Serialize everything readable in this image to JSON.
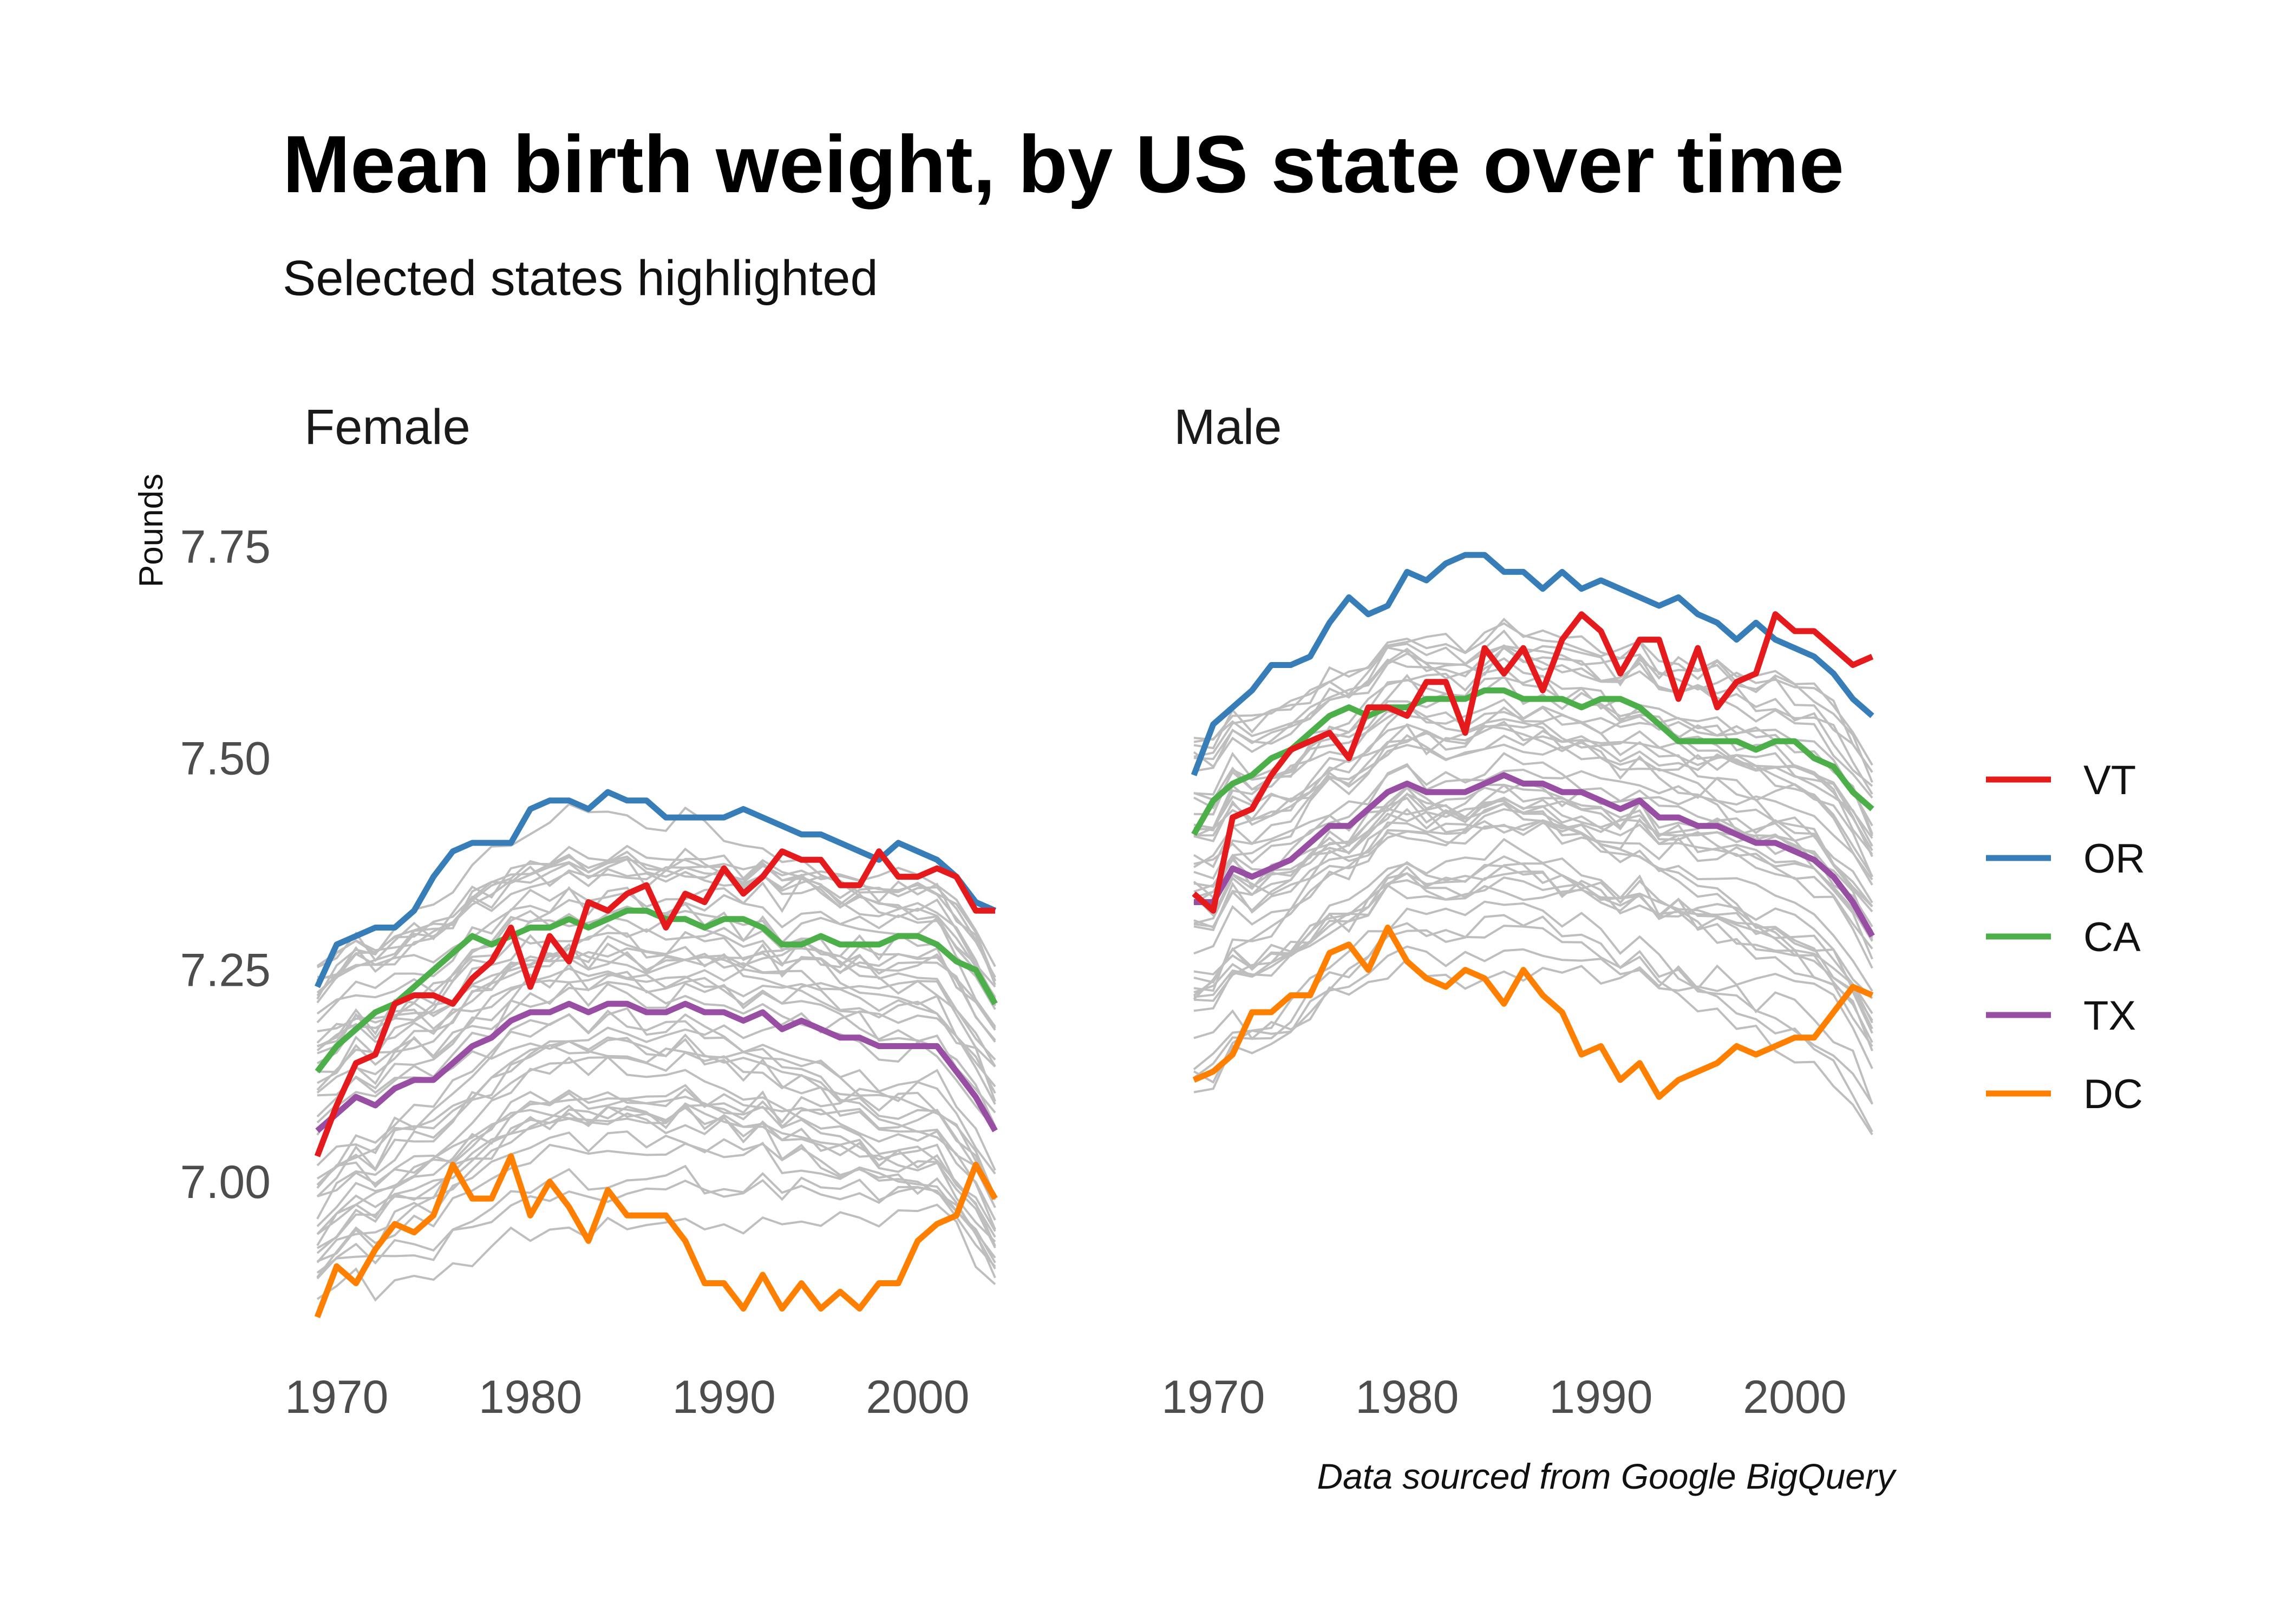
{
  "chart_data": {
    "type": "line",
    "title": "Mean birth weight, by US state over time",
    "subtitle": "Selected states highlighted",
    "caption": "Data sourced from Google BigQuery",
    "ylabel": "Pounds",
    "xlabel": "",
    "xlim": [
      1969,
      2004
    ],
    "ylim": [
      6.81,
      7.82
    ],
    "x_ticks": [
      1970,
      1980,
      1990,
      2000
    ],
    "y_ticks": [
      7.0,
      7.25,
      7.5,
      7.75
    ],
    "y_tick_labels": [
      "7.00",
      "7.25",
      "7.50",
      "7.75"
    ],
    "grid": false,
    "legend_position": "right",
    "background_color": "#bebebe",
    "facets": [
      "Female",
      "Male"
    ],
    "years": [
      1969,
      1970,
      1971,
      1972,
      1973,
      1974,
      1975,
      1976,
      1977,
      1978,
      1979,
      1980,
      1981,
      1982,
      1983,
      1984,
      1985,
      1986,
      1987,
      1988,
      1989,
      1990,
      1991,
      1992,
      1993,
      1994,
      1995,
      1996,
      1997,
      1998,
      1999,
      2000,
      2001,
      2002,
      2003,
      2004
    ],
    "series": [
      {
        "name": "VT",
        "color": "#e41a1c",
        "female": [
          7.03,
          7.09,
          7.14,
          7.15,
          7.21,
          7.22,
          7.22,
          7.21,
          7.24,
          7.26,
          7.3,
          7.23,
          7.29,
          7.26,
          7.33,
          7.32,
          7.34,
          7.35,
          7.3,
          7.34,
          7.33,
          7.37,
          7.34,
          7.36,
          7.39,
          7.38,
          7.38,
          7.35,
          7.35,
          7.39,
          7.36,
          7.36,
          7.37,
          7.36,
          7.32,
          7.32
        ],
        "male": [
          7.34,
          7.32,
          7.43,
          7.44,
          7.48,
          7.51,
          7.52,
          7.53,
          7.5,
          7.56,
          7.56,
          7.55,
          7.59,
          7.59,
          7.53,
          7.63,
          7.6,
          7.63,
          7.58,
          7.64,
          7.67,
          7.65,
          7.6,
          7.64,
          7.64,
          7.57,
          7.63,
          7.56,
          7.59,
          7.6,
          7.67,
          7.65,
          7.65,
          7.63,
          7.61,
          7.62
        ]
      },
      {
        "name": "OR",
        "color": "#377eb8",
        "female": [
          7.23,
          7.28,
          7.29,
          7.3,
          7.3,
          7.32,
          7.36,
          7.39,
          7.4,
          7.4,
          7.4,
          7.44,
          7.45,
          7.45,
          7.44,
          7.46,
          7.45,
          7.45,
          7.43,
          7.43,
          7.43,
          7.43,
          7.44,
          7.43,
          7.42,
          7.41,
          7.41,
          7.4,
          7.39,
          7.38,
          7.4,
          7.39,
          7.38,
          7.36,
          7.33,
          7.32
        ],
        "male": [
          7.48,
          7.54,
          7.56,
          7.58,
          7.61,
          7.61,
          7.62,
          7.66,
          7.69,
          7.67,
          7.68,
          7.72,
          7.71,
          7.73,
          7.74,
          7.74,
          7.72,
          7.72,
          7.7,
          7.72,
          7.7,
          7.71,
          7.7,
          7.69,
          7.68,
          7.69,
          7.67,
          7.66,
          7.64,
          7.66,
          7.64,
          7.63,
          7.62,
          7.6,
          7.57,
          7.55
        ]
      },
      {
        "name": "CA",
        "color": "#4daf4a",
        "female": [
          7.13,
          7.16,
          7.18,
          7.2,
          7.21,
          7.23,
          7.25,
          7.27,
          7.29,
          7.28,
          7.29,
          7.3,
          7.3,
          7.31,
          7.3,
          7.31,
          7.32,
          7.32,
          7.31,
          7.31,
          7.3,
          7.31,
          7.31,
          7.3,
          7.28,
          7.28,
          7.29,
          7.28,
          7.28,
          7.28,
          7.29,
          7.29,
          7.28,
          7.26,
          7.25,
          7.21
        ],
        "male": [
          7.41,
          7.45,
          7.47,
          7.48,
          7.5,
          7.51,
          7.53,
          7.55,
          7.56,
          7.55,
          7.56,
          7.56,
          7.57,
          7.57,
          7.57,
          7.58,
          7.58,
          7.57,
          7.57,
          7.57,
          7.56,
          7.57,
          7.57,
          7.56,
          7.54,
          7.52,
          7.52,
          7.52,
          7.52,
          7.51,
          7.52,
          7.52,
          7.5,
          7.49,
          7.46,
          7.44
        ]
      },
      {
        "name": "TX",
        "color": "#984ea3",
        "female": [
          7.06,
          7.08,
          7.1,
          7.09,
          7.11,
          7.12,
          7.12,
          7.14,
          7.16,
          7.17,
          7.19,
          7.2,
          7.2,
          7.21,
          7.2,
          7.21,
          7.21,
          7.2,
          7.2,
          7.21,
          7.2,
          7.2,
          7.19,
          7.2,
          7.18,
          7.19,
          7.18,
          7.17,
          7.17,
          7.16,
          7.16,
          7.16,
          7.16,
          7.13,
          7.1,
          7.06
        ],
        "male": [
          7.33,
          7.33,
          7.37,
          7.36,
          7.37,
          7.38,
          7.4,
          7.42,
          7.42,
          7.44,
          7.46,
          7.47,
          7.46,
          7.46,
          7.46,
          7.47,
          7.48,
          7.47,
          7.47,
          7.46,
          7.46,
          7.45,
          7.44,
          7.45,
          7.43,
          7.43,
          7.42,
          7.42,
          7.41,
          7.4,
          7.4,
          7.39,
          7.38,
          7.36,
          7.33,
          7.29
        ]
      },
      {
        "name": "DC",
        "color": "#ff7f00",
        "female": [
          6.84,
          6.9,
          6.88,
          6.92,
          6.95,
          6.94,
          6.96,
          7.02,
          6.98,
          6.98,
          7.03,
          6.96,
          7.0,
          6.97,
          6.93,
          6.99,
          6.96,
          6.96,
          6.96,
          6.93,
          6.88,
          6.88,
          6.85,
          6.89,
          6.85,
          6.88,
          6.85,
          6.87,
          6.85,
          6.88,
          6.88,
          6.93,
          6.95,
          6.96,
          7.02,
          6.98
        ],
        "male": [
          7.12,
          7.13,
          7.15,
          7.2,
          7.2,
          7.22,
          7.22,
          7.27,
          7.28,
          7.25,
          7.3,
          7.26,
          7.24,
          7.23,
          7.25,
          7.24,
          7.21,
          7.25,
          7.22,
          7.2,
          7.15,
          7.16,
          7.12,
          7.14,
          7.1,
          7.12,
          7.13,
          7.14,
          7.16,
          7.15,
          7.16,
          7.17,
          7.17,
          7.2,
          7.23,
          7.22
        ]
      }
    ]
  }
}
